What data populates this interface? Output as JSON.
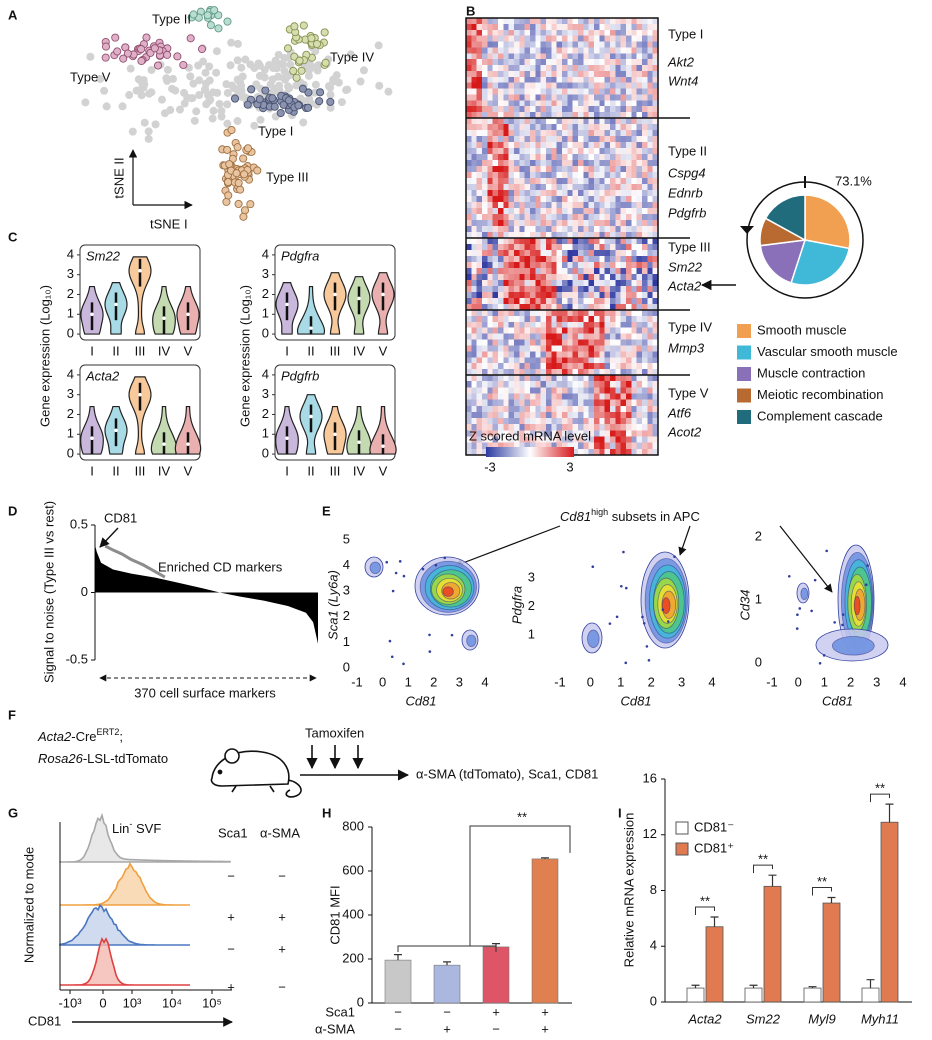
{
  "panel_labels": [
    "A",
    "B",
    "C",
    "D",
    "E",
    "F",
    "G",
    "H",
    "I"
  ],
  "panel_a": {
    "clusters": [
      "Type I",
      "Type II",
      "Type III",
      "Type IV",
      "Type V"
    ],
    "x_axis": "tSNE I",
    "y_axis": "tSNE II"
  },
  "panel_b": {
    "types": [
      {
        "name": "Type I",
        "genes": [
          "Akt2",
          "Wnt4"
        ]
      },
      {
        "name": "Type II",
        "genes": [
          "Cspg4",
          "Ednrb",
          "Pdgfrb"
        ]
      },
      {
        "name": "Type III",
        "genes": [
          "Sm22",
          "Acta2"
        ]
      },
      {
        "name": "Type IV",
        "genes": [
          "Mmp3"
        ]
      },
      {
        "name": "Type V",
        "genes": [
          "Atf6",
          "Acot2"
        ]
      }
    ],
    "colorbar_title": "Z scored mRNA level",
    "colorbar_min": "-3",
    "colorbar_max": "3"
  },
  "panel_c": {
    "y_labels": [
      "Gene expression (Log₁₀)",
      "Gene expression (Log₁₀)"
    ]
  },
  "panel_e": {
    "title": [
      "Cd81",
      "high",
      " subsets in APC"
    ],
    "plots": [
      {
        "y_label": "Sca1 (Ly6a)",
        "x_label": "Cd81",
        "x_ticks": [
          "-1",
          "0",
          "1",
          "2",
          "3",
          "4"
        ],
        "y_ticks": [
          "0",
          "1",
          "2",
          "3",
          "4",
          "5"
        ]
      },
      {
        "y_label": "Pdgfra",
        "x_label": "Cd81",
        "x_ticks": [
          "-1",
          "0",
          "1",
          "2",
          "3",
          "4"
        ],
        "y_ticks": [
          "1",
          "2",
          "3"
        ]
      },
      {
        "y_label": "Cd34",
        "x_label": "Cd81",
        "x_ticks": [
          "-1",
          "0",
          "1",
          "2",
          "3",
          "4"
        ],
        "y_ticks": [
          "0",
          "1",
          "2"
        ]
      }
    ]
  },
  "panel_f": {
    "line1": [
      "Acta2",
      "-Cre",
      "ERT2",
      ";"
    ],
    "line2": [
      "Rosa26",
      "-LSL-tdTomato"
    ],
    "treatment": "Tamoxifen",
    "readout": "α-SMA (tdTomato), Sca1, CD81"
  },
  "panel_g": {
    "title": [
      "Lin",
      "-",
      " SVF"
    ],
    "columns": [
      "Sca1",
      "α-SMA"
    ],
    "rows": [
      [
        "−",
        "−"
      ],
      [
        "+",
        "+"
      ],
      [
        "−",
        "+"
      ],
      [
        "+",
        "−"
      ]
    ],
    "x_ticks": [
      "-10³",
      "0",
      "10³",
      "10⁴",
      "10⁵"
    ],
    "x_label": "CD81",
    "y_label": "Normalized to mode"
  },
  "chart_data": [
    {
      "type": "pie",
      "categories": [
        "Smooth muscle",
        "Vascular smooth muscle",
        "Muscle contraction",
        "Meiotic recombination",
        "Complement cascade"
      ],
      "values": [
        28,
        27,
        18,
        10,
        17
      ],
      "colors": [
        "#f0a050",
        "#40b8d8",
        "#8a70b8",
        "#b86a30",
        "#206c7c"
      ],
      "annotation": "73.1%"
    },
    {
      "type": "violin",
      "title": "Sm22",
      "categories": [
        "I",
        "II",
        "III",
        "IV",
        "V"
      ],
      "values": [
        1,
        1.5,
        3.2,
        0.8,
        1
      ],
      "colors": [
        "#c9b8dc",
        "#a8dbe6",
        "#f8c99a",
        "#c4dbb2",
        "#eab0b0"
      ],
      "ylim": [
        -0.3,
        4.5
      ],
      "yticks": [
        0,
        1,
        2,
        3,
        4
      ]
    },
    {
      "type": "violin",
      "title": "Pdgfra",
      "categories": [
        "I",
        "II",
        "III",
        "IV",
        "V"
      ],
      "values": [
        1.5,
        0.3,
        2,
        1.8,
        2
      ],
      "colors": [
        "#c9b8dc",
        "#a8dbe6",
        "#f8c99a",
        "#c4dbb2",
        "#eab0b0"
      ],
      "ylim": [
        -0.3,
        4.5
      ],
      "yticks": [
        0,
        1,
        2,
        3,
        4
      ]
    },
    {
      "type": "violin",
      "title": "Acta2",
      "categories": [
        "I",
        "II",
        "III",
        "IV",
        "V"
      ],
      "values": [
        0.8,
        1.2,
        3,
        0.5,
        0.5
      ],
      "colors": [
        "#c9b8dc",
        "#a8dbe6",
        "#f8c99a",
        "#c4dbb2",
        "#eab0b0"
      ],
      "ylim": [
        -0.3,
        4.5
      ],
      "yticks": [
        0,
        1,
        2,
        3,
        4
      ]
    },
    {
      "type": "violin",
      "title": "Pdgfrb",
      "categories": [
        "I",
        "II",
        "III",
        "IV",
        "V"
      ],
      "values": [
        0.8,
        1.9,
        1,
        0.6,
        0.4
      ],
      "colors": [
        "#c9b8dc",
        "#a8dbe6",
        "#f8c99a",
        "#c4dbb2",
        "#eab0b0"
      ],
      "ylim": [
        -0.3,
        4.5
      ],
      "yticks": [
        0,
        1,
        2,
        3,
        4
      ]
    },
    {
      "type": "area",
      "annotation": "CD81",
      "y_label": "Signal to noise (Type III vs rest)",
      "x_label": "370 cell surface markers",
      "color": "#000000",
      "x": [
        0,
        3,
        10,
        30,
        60,
        100,
        140,
        180,
        207,
        240,
        280,
        320,
        350,
        362,
        370
      ],
      "values": [
        0.35,
        0.3,
        0.22,
        0.17,
        0.14,
        0.11,
        0.07,
        0.03,
        0,
        -0.03,
        -0.06,
        -0.1,
        -0.15,
        -0.22,
        -0.38
      ],
      "series": [
        {
          "name": "Enriched CD markers",
          "color": "#8c8c8c",
          "x": [
            17,
            30,
            45,
            60,
            80,
            100,
            116
          ],
          "values": [
            0.3,
            0.27,
            0.24,
            0.2,
            0.16,
            0.11,
            0.07
          ]
        }
      ],
      "xlim": [
        0,
        370
      ],
      "ylim": [
        -0.5,
        0.5
      ],
      "yticks": [
        -0.5,
        0,
        0.5
      ]
    },
    {
      "type": "bar",
      "y_label": "CD81 MFI",
      "values": [
        195,
        172,
        255,
        655
      ],
      "errors": [
        25,
        15,
        15,
        5
      ],
      "colors": [
        "#c8c8c8",
        "#aab8e0",
        "#dd5566",
        "#e08050"
      ],
      "row_labels": [
        "Sca1",
        "α-SMA"
      ],
      "rows": [
        [
          "−",
          "−",
          "+",
          "+"
        ],
        [
          "−",
          "+",
          "−",
          "+"
        ]
      ],
      "ylim": [
        0,
        800
      ],
      "yticks": [
        0,
        200,
        400,
        600,
        800
      ],
      "significance": "**"
    },
    {
      "type": "grouped_bar",
      "y_label": "Relative mRNA expression",
      "categories": [
        "Acta2",
        "Sm22",
        "Myl9",
        "Myh11"
      ],
      "series": [
        {
          "name": "CD81⁻",
          "color": "#ffffff",
          "values": [
            1,
            1,
            1,
            1
          ],
          "errors": [
            0.2,
            0.2,
            0.1,
            0.6
          ]
        },
        {
          "name": "CD81⁺",
          "color": "#e07a50",
          "values": [
            5.4,
            8.3,
            7.1,
            12.9
          ],
          "errors": [
            0.7,
            0.8,
            0.4,
            1.3
          ]
        }
      ],
      "ylim": [
        0,
        16
      ],
      "yticks": [
        0,
        4,
        8,
        12,
        16
      ],
      "significance": [
        "**",
        "**",
        "**",
        "**"
      ]
    }
  ]
}
